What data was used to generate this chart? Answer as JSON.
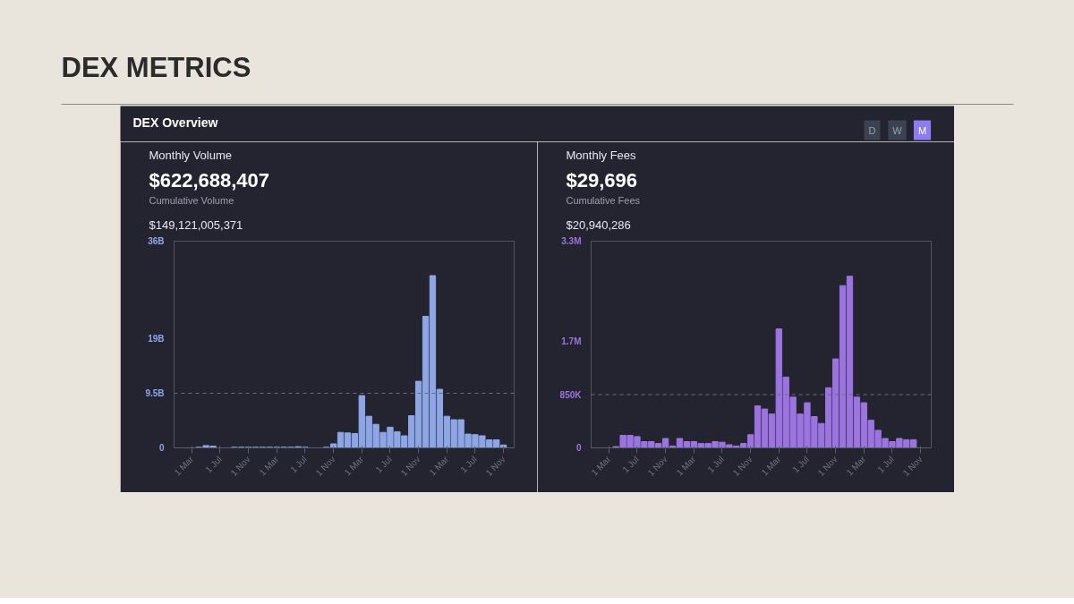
{
  "chart_data": [
    {
      "type": "other",
      "title": "DEX METRICS",
      "subtitle": "DEX Overview",
      "annotations": [
        "D",
        "W",
        "M"
      ]
    },
    {
      "type": "bar",
      "title": "Monthly Volume",
      "annotations": [
        "$622,688,407",
        "Cumulative Volume",
        "$149,121,005,371"
      ],
      "categories": [
        null,
        "1 Mar",
        null,
        null,
        null,
        "1 Jul",
        null,
        null,
        null,
        "1 Nov",
        null,
        null,
        null,
        "1 Mar",
        null,
        null,
        null,
        "1 Jul",
        null,
        null,
        null,
        "1 Nov",
        null,
        null,
        null,
        "1 Mar",
        null,
        null,
        null,
        "1 Jul",
        null,
        null,
        null,
        "1 Nov",
        null,
        null,
        null,
        "1 Mar",
        null,
        null,
        null,
        "1 Jul",
        null,
        null,
        null,
        "1 Nov"
      ],
      "values": [
        0,
        0,
        100000000,
        400000000,
        300000000,
        0,
        0,
        100000000,
        100000000,
        100000000,
        100000000,
        100000000,
        100000000,
        100000000,
        100000000,
        100000000,
        200000000,
        100000000,
        0,
        0,
        100000000,
        700000000,
        2700000000,
        2600000000,
        2500000000,
        9100000000,
        5500000000,
        4100000000,
        2700000000,
        3600000000,
        2800000000,
        2100000000,
        5600000000,
        11600000000,
        22900000000,
        30000000000,
        10200000000,
        5500000000,
        4900000000,
        4900000000,
        2400000000,
        2300000000,
        2100000000,
        1400000000,
        1400000000,
        500000000
      ],
      "color": "#8ea6e6",
      "ylim": [
        0,
        36000000000
      ],
      "yticks": [
        0,
        {
          "value": 9500000000,
          "label": "9.5B"
        },
        {
          "value": 19000000000,
          "label": "19B"
        },
        {
          "value": 36000000000,
          "label": "36B"
        }
      ],
      "ref_lines": [
        {
          "axis": "y",
          "value": 9500000000,
          "line_style": "dashed"
        }
      ],
      "grid": false
    },
    {
      "type": "bar",
      "title": "Monthly Fees",
      "annotations": [
        "$29,696",
        "Cumulative Fees",
        "$20,940,286"
      ],
      "categories": [
        null,
        "1 Mar",
        null,
        null,
        null,
        "1 Jul",
        null,
        null,
        null,
        "1 Nov",
        null,
        null,
        null,
        "1 Mar",
        null,
        null,
        null,
        "1 Jul",
        null,
        null,
        null,
        "1 Nov",
        null,
        null,
        null,
        "1 Mar",
        null,
        null,
        null,
        "1 Jul",
        null,
        null,
        null,
        "1 Nov",
        null,
        null,
        null,
        "1 Mar",
        null,
        null,
        null,
        "1 Jul",
        null,
        null,
        null,
        "1 Nov"
      ],
      "values": [
        0,
        0,
        20000,
        200000,
        200000,
        180000,
        100000,
        100000,
        70000,
        150000,
        30000,
        150000,
        100000,
        100000,
        70000,
        70000,
        100000,
        90000,
        50000,
        30000,
        70000,
        210000,
        670000,
        620000,
        540000,
        1900000,
        1130000,
        810000,
        540000,
        720000,
        500000,
        390000,
        960000,
        1420000,
        2590000,
        2740000,
        810000,
        720000,
        440000,
        280000,
        150000,
        100000,
        150000,
        130000,
        130000,
        0
      ],
      "color": "#9b74e0",
      "ylim": [
        0,
        3300000
      ],
      "yticks": [
        0,
        {
          "value": 850000,
          "label": "850K"
        },
        {
          "value": 1700000,
          "label": "1.7M"
        },
        {
          "value": 3300000,
          "label": "3.3M"
        }
      ],
      "ref_lines": [
        {
          "axis": "y",
          "value": 850000,
          "line_style": "dashed"
        }
      ],
      "grid": false
    }
  ]
}
